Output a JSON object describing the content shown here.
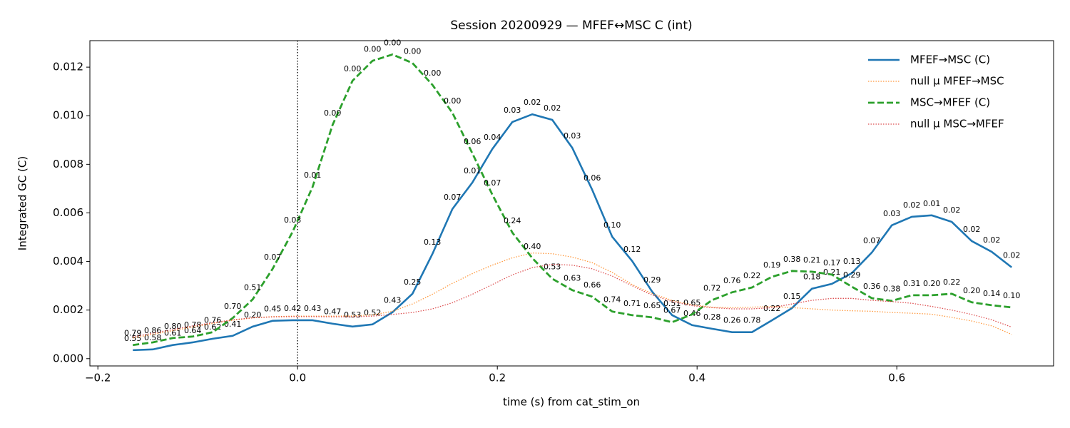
{
  "chart_data": {
    "type": "line",
    "title": "Session 20200929 — MFEF↔MSC C (int)",
    "x_label": "time (s) from cat_stim_on",
    "y_label": "Integrated GC (C)",
    "x": [
      -0.165,
      -0.145,
      -0.125,
      -0.105,
      -0.085,
      -0.065,
      -0.045,
      -0.025,
      -0.005,
      0.015,
      0.035,
      0.055,
      0.075,
      0.095,
      0.115,
      0.135,
      0.155,
      0.175,
      0.195,
      0.215,
      0.235,
      0.255,
      0.275,
      0.295,
      0.315,
      0.335,
      0.355,
      0.375,
      0.395,
      0.415,
      0.435,
      0.455,
      0.475,
      0.495,
      0.515,
      0.535,
      0.555,
      0.575,
      0.595,
      0.615,
      0.635,
      0.655,
      0.675,
      0.695,
      0.715
    ],
    "xlim": [
      -0.208,
      0.757
    ],
    "xticks": [
      {
        "value": -0.2,
        "label": "−0.2"
      },
      {
        "value": 0,
        "label": "0.0"
      },
      {
        "value": 0.2,
        "label": "0.2"
      },
      {
        "value": 0.4,
        "label": "0.4"
      },
      {
        "value": 0.6,
        "label": "0.6"
      }
    ],
    "ylim": [
      -0.0003,
      0.01309
    ],
    "yticks": [
      {
        "value": 0,
        "label": "0.000"
      },
      {
        "value": 0.002,
        "label": "0.002"
      },
      {
        "value": 0.004,
        "label": "0.004"
      },
      {
        "value": 0.006,
        "label": "0.006"
      },
      {
        "value": 0.008,
        "label": "0.008"
      },
      {
        "value": 0.01,
        "label": "0.010"
      },
      {
        "value": 0.012,
        "label": "0.012"
      }
    ],
    "vline_x": 0,
    "legend": "upper right",
    "series": [
      {
        "name": "MFEF→MSC (C)",
        "color": "#1f77b4",
        "style": "solid",
        "values": [
          0.00035,
          0.00038,
          0.00056,
          0.00067,
          0.00082,
          0.00094,
          0.00132,
          0.00156,
          0.00158,
          0.00158,
          0.00144,
          0.00132,
          0.00141,
          0.00191,
          0.00267,
          0.00431,
          0.00616,
          0.00725,
          0.00863,
          0.00974,
          0.01006,
          0.00983,
          0.00868,
          0.00695,
          0.00502,
          0.00402,
          0.00276,
          0.00179,
          0.00138,
          0.00123,
          0.00109,
          0.00109,
          0.00158,
          0.00208,
          0.00288,
          0.00308,
          0.00352,
          0.00437,
          0.00549,
          0.00584,
          0.0059,
          0.00563,
          0.00484,
          0.0044,
          0.00376
        ],
        "p_labels": [
          "0.55",
          "0.58",
          "0.61",
          "0.64",
          "0.62",
          "0.41",
          "0.20",
          "0.45",
          "0.42",
          "0.43",
          "0.47",
          "0.53",
          "0.52",
          "0.43",
          "0.25",
          "0.13",
          "0.07",
          "0.01",
          "0.04",
          "0.03",
          "0.02",
          "0.02",
          "0.03",
          "0.06",
          "0.10",
          "0.12",
          "0.29",
          "0.51",
          "0.46",
          "0.28",
          "0.26",
          "0.78",
          "0.22",
          "0.15",
          "0.18",
          "0.21",
          "0.13",
          "0.07",
          "0.03",
          "0.02",
          "0.01",
          "0.02",
          "0.02",
          "0.02",
          "0.02"
        ]
      },
      {
        "name": "null μ MFEF→MSC",
        "color": "#ff7f0e",
        "style": "dotted",
        "values": [
          0.00085,
          0.001,
          0.00115,
          0.0013,
          0.00145,
          0.00158,
          0.00168,
          0.00173,
          0.00175,
          0.00175,
          0.00175,
          0.00176,
          0.0018,
          0.00195,
          0.00225,
          0.00265,
          0.0031,
          0.0035,
          0.00385,
          0.00415,
          0.00435,
          0.00432,
          0.00418,
          0.00395,
          0.00355,
          0.00305,
          0.00268,
          0.0024,
          0.00222,
          0.00212,
          0.0021,
          0.00212,
          0.00215,
          0.0021,
          0.00205,
          0.002,
          0.00197,
          0.00195,
          0.0019,
          0.00187,
          0.00183,
          0.0017,
          0.00155,
          0.00135,
          0.001
        ]
      },
      {
        "name": "MSC→MFEF (C)",
        "color": "#2ca02c",
        "style": "dashed",
        "values": [
          0.00056,
          0.00067,
          0.00085,
          0.00091,
          0.00109,
          0.00167,
          0.00244,
          0.0037,
          0.00522,
          0.00707,
          0.00962,
          0.01144,
          0.01226,
          0.01252,
          0.01217,
          0.01127,
          0.01012,
          0.00845,
          0.00675,
          0.00519,
          0.00414,
          0.00329,
          0.00282,
          0.00255,
          0.00194,
          0.00179,
          0.0017,
          0.0015,
          0.00182,
          0.00241,
          0.00273,
          0.00293,
          0.00337,
          0.00361,
          0.00358,
          0.00346,
          0.00296,
          0.00249,
          0.00238,
          0.00261,
          0.00261,
          0.00267,
          0.00232,
          0.0022,
          0.00211
        ],
        "p_labels": [
          "0.79",
          "0.86",
          "0.80",
          "0.78",
          "0.76",
          "0.70",
          "0.51",
          "0.07",
          "0.03",
          "0.01",
          "0.00",
          "0.00",
          "0.00",
          "0.00",
          "0.00",
          "0.00",
          "0.00",
          "0.06",
          "0.07",
          "0.24",
          "0.40",
          "0.53",
          "0.63",
          "0.66",
          "0.74",
          "0.71",
          "0.65",
          "0.67",
          "0.65",
          "0.72",
          "0.76",
          "0.22",
          "0.19",
          "0.38",
          "0.21",
          "0.17",
          "0.29",
          "0.36",
          "0.38",
          "0.31",
          "0.20",
          "0.22",
          "0.20",
          "0.14",
          "0.10"
        ]
      },
      {
        "name": "null μ MSC→MFEF",
        "color": "#d62728",
        "style": "dotted",
        "values": [
          0.0009,
          0.00105,
          0.0012,
          0.00135,
          0.00148,
          0.0016,
          0.00168,
          0.00172,
          0.00173,
          0.00173,
          0.00172,
          0.00172,
          0.00175,
          0.00182,
          0.0019,
          0.00205,
          0.0023,
          0.00265,
          0.00305,
          0.00345,
          0.00375,
          0.00388,
          0.00385,
          0.0037,
          0.0034,
          0.003,
          0.00262,
          0.00235,
          0.00218,
          0.0021,
          0.00205,
          0.00205,
          0.0021,
          0.00225,
          0.0024,
          0.00248,
          0.00248,
          0.0024,
          0.00235,
          0.00228,
          0.00215,
          0.002,
          0.00182,
          0.0016,
          0.0013
        ]
      }
    ]
  }
}
